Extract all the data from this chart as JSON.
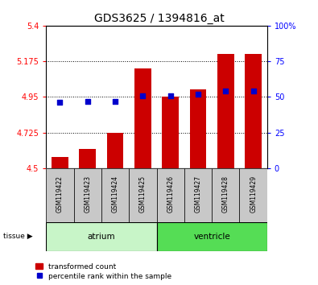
{
  "title": "GDS3625 / 1394816_at",
  "samples": [
    "GSM119422",
    "GSM119423",
    "GSM119424",
    "GSM119425",
    "GSM119426",
    "GSM119427",
    "GSM119428",
    "GSM119429"
  ],
  "transformed_counts": [
    4.57,
    4.62,
    4.725,
    5.13,
    4.95,
    5.0,
    5.22,
    5.22
  ],
  "percentile_ranks": [
    46,
    47,
    47,
    51,
    51,
    52,
    54,
    54
  ],
  "bar_color": "#cc0000",
  "dot_color": "#0000cc",
  "ylim_left": [
    4.5,
    5.4
  ],
  "ylim_right": [
    0,
    100
  ],
  "yticks_left": [
    4.5,
    4.725,
    4.95,
    5.175,
    5.4
  ],
  "ytick_labels_left": [
    "4.5",
    "4.725",
    "4.95",
    "5.175",
    "5.4"
  ],
  "yticks_right": [
    0,
    25,
    50,
    75,
    100
  ],
  "ytick_labels_right": [
    "0",
    "25",
    "50",
    "75",
    "100%"
  ],
  "hlines": [
    4.725,
    4.95,
    5.175
  ],
  "atrium_color": "#c8f5c8",
  "ventricle_color": "#55dd55",
  "sample_box_color": "#c8c8c8",
  "legend_bar_label": "transformed count",
  "legend_dot_label": "percentile rank within the sample"
}
